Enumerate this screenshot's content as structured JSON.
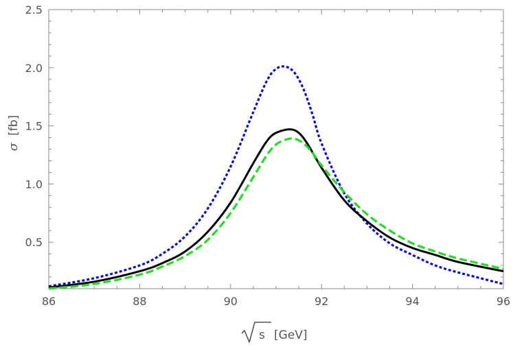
{
  "chart_data": {
    "type": "line",
    "title": "",
    "xlabel": "[GeV]",
    "xlabel_sqrt_symbol": "s",
    "ylabel_symbol": "σ",
    "ylabel": "[fb]",
    "xlim": [
      86,
      96
    ],
    "ylim": [
      0.1,
      2.5
    ],
    "x_ticks": [
      86,
      88,
      90,
      92,
      94,
      96
    ],
    "x_tick_labels": [
      "86",
      "88",
      "90",
      "92",
      "94",
      "96"
    ],
    "y_ticks": [
      0.5,
      1.0,
      1.5,
      2.0,
      2.5
    ],
    "y_tick_labels": [
      "0.5",
      "1.0",
      "1.5",
      "2.0",
      "2.5"
    ],
    "grid": false,
    "legend": "none",
    "series": [
      {
        "style": "dotted",
        "color": "#0a0ad2",
        "x": [
          86,
          87,
          88,
          88.5,
          89,
          89.5,
          90,
          90.5,
          90.8,
          91,
          91.2,
          91.4,
          91.6,
          91.8,
          92,
          92.5,
          93,
          93.5,
          94,
          94.5,
          95,
          96
        ],
        "y": [
          0.12,
          0.19,
          0.3,
          0.4,
          0.55,
          0.79,
          1.15,
          1.62,
          1.89,
          1.99,
          2.01,
          1.96,
          1.82,
          1.6,
          1.35,
          0.92,
          0.66,
          0.49,
          0.39,
          0.3,
          0.24,
          0.14
        ]
      },
      {
        "style": "solid",
        "color": "#000000",
        "x": [
          86,
          87,
          88,
          88.5,
          89,
          89.5,
          90,
          90.5,
          90.8,
          91,
          91.3,
          91.5,
          91.7,
          92,
          92.5,
          93,
          93.5,
          94,
          94.5,
          95,
          96
        ],
        "y": [
          0.11,
          0.16,
          0.25,
          0.32,
          0.42,
          0.59,
          0.84,
          1.18,
          1.37,
          1.44,
          1.47,
          1.44,
          1.34,
          1.14,
          0.86,
          0.68,
          0.54,
          0.45,
          0.39,
          0.33,
          0.25
        ]
      },
      {
        "style": "dashed",
        "color": "#1fe01f",
        "x": [
          86,
          87,
          88,
          88.5,
          89,
          89.5,
          90,
          90.5,
          90.8,
          91,
          91.2,
          91.4,
          91.6,
          91.8,
          92,
          92.5,
          93,
          93.5,
          94,
          94.5,
          95,
          96
        ],
        "y": [
          0.1,
          0.14,
          0.22,
          0.29,
          0.38,
          0.52,
          0.75,
          1.06,
          1.25,
          1.34,
          1.38,
          1.39,
          1.35,
          1.27,
          1.16,
          0.93,
          0.74,
          0.6,
          0.49,
          0.42,
          0.36,
          0.27
        ]
      }
    ]
  }
}
